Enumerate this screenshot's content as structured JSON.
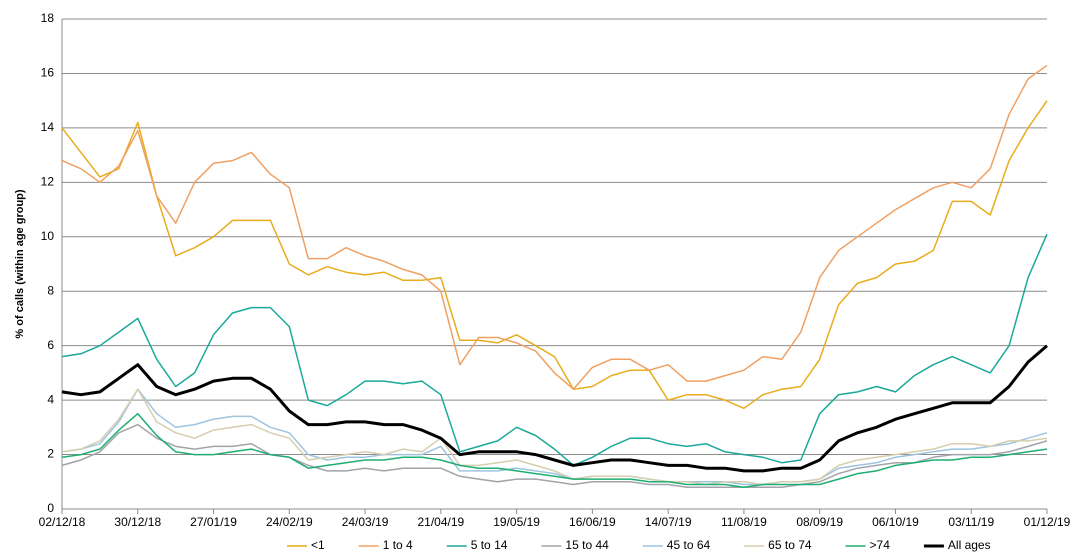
{
  "chart_data": {
    "type": "line",
    "y_label": "% of calls (within age group)",
    "x": [
      "02/12/18",
      "09/12/18",
      "16/12/18",
      "23/12/18",
      "30/12/18",
      "06/01/19",
      "13/01/19",
      "20/01/19",
      "27/01/19",
      "03/02/19",
      "10/02/19",
      "17/02/19",
      "24/02/19",
      "03/03/19",
      "10/03/19",
      "17/03/19",
      "24/03/19",
      "31/03/19",
      "07/04/19",
      "14/04/19",
      "21/04/19",
      "28/04/19",
      "05/05/19",
      "12/05/19",
      "19/05/19",
      "26/05/19",
      "02/06/19",
      "09/06/19",
      "16/06/19",
      "23/06/19",
      "30/06/19",
      "07/07/19",
      "14/07/19",
      "21/07/19",
      "28/07/19",
      "04/08/19",
      "11/08/19",
      "18/08/19",
      "25/08/19",
      "01/09/19",
      "08/09/19",
      "15/09/19",
      "22/09/19",
      "29/09/19",
      "06/10/19",
      "13/10/19",
      "20/10/19",
      "27/10/19",
      "03/11/19",
      "10/11/19",
      "17/11/19",
      "24/11/19",
      "01/12/19"
    ],
    "xlim": [
      "02/12/18",
      "01/12/19"
    ],
    "xticks": [
      "02/12/18",
      "30/12/18",
      "27/01/19",
      "24/02/19",
      "24/03/19",
      "21/04/19",
      "19/05/19",
      "16/06/19",
      "14/07/19",
      "11/08/19",
      "08/09/19",
      "06/10/19",
      "03/11/19",
      "01/12/19"
    ],
    "ylim": [
      0,
      18
    ],
    "yticks": [
      0,
      2,
      4,
      6,
      8,
      10,
      12,
      14,
      16,
      18
    ],
    "grid": true,
    "legend": "bottom",
    "series": [
      {
        "name": "<1",
        "color": "#e8ac1c",
        "width": 1.5,
        "values": [
          14,
          13.1,
          12.2,
          12.5,
          14.2,
          11.5,
          9.3,
          9.6,
          10.0,
          10.6,
          10.6,
          10.6,
          9.0,
          8.6,
          8.9,
          8.7,
          8.6,
          8.7,
          8.4,
          8.4,
          8.5,
          6.2,
          6.2,
          6.1,
          6.4,
          6.0,
          5.6,
          4.4,
          4.5,
          4.9,
          5.1,
          5.1,
          4.0,
          4.2,
          4.2,
          4.0,
          3.7,
          4.2,
          4.4,
          4.5,
          5.5,
          7.5,
          8.3,
          8.5,
          9.0,
          9.1,
          9.5,
          11.3,
          11.3,
          10.8,
          12.8,
          14.0,
          15.0
        ]
      },
      {
        "name": "1 to 4",
        "color": "#f0a062",
        "width": 1.5,
        "values": [
          12.8,
          12.5,
          12.0,
          12.6,
          13.9,
          11.5,
          10.5,
          12.0,
          12.7,
          12.8,
          13.1,
          12.3,
          11.8,
          9.2,
          9.2,
          9.6,
          9.3,
          9.1,
          8.8,
          8.6,
          8.0,
          5.3,
          6.3,
          6.3,
          6.1,
          5.8,
          5.0,
          4.4,
          5.2,
          5.5,
          5.5,
          5.1,
          5.3,
          4.7,
          4.7,
          4.9,
          5.1,
          5.6,
          5.5,
          6.5,
          8.5,
          9.5,
          10.0,
          10.5,
          11.0,
          11.4,
          11.8,
          12.0,
          11.8,
          12.5,
          14.5,
          15.8,
          16.3
        ]
      },
      {
        "name": "5 to 14",
        "color": "#1aa99a",
        "width": 1.5,
        "values": [
          5.6,
          5.7,
          6.0,
          6.5,
          7.0,
          5.5,
          4.5,
          5.0,
          6.4,
          7.2,
          7.4,
          7.4,
          6.7,
          4.0,
          3.8,
          4.2,
          4.7,
          4.7,
          4.6,
          4.7,
          4.2,
          2.1,
          2.3,
          2.5,
          3.0,
          2.7,
          2.2,
          1.6,
          1.9,
          2.3,
          2.6,
          2.6,
          2.4,
          2.3,
          2.4,
          2.1,
          2.0,
          1.9,
          1.7,
          1.8,
          3.5,
          4.2,
          4.3,
          4.5,
          4.3,
          4.9,
          5.3,
          5.6,
          5.3,
          5.0,
          6.0,
          8.5,
          10.1
        ]
      },
      {
        "name": "15 to 44",
        "color": "#a3a3ab",
        "width": 1.5,
        "values": [
          1.6,
          1.8,
          2.1,
          2.8,
          3.1,
          2.6,
          2.3,
          2.2,
          2.3,
          2.3,
          2.4,
          2.0,
          1.9,
          1.6,
          1.4,
          1.4,
          1.5,
          1.4,
          1.5,
          1.5,
          1.5,
          1.2,
          1.1,
          1.0,
          1.1,
          1.1,
          1.0,
          0.9,
          1.0,
          1.0,
          1.0,
          0.9,
          0.9,
          0.8,
          0.8,
          0.8,
          0.8,
          0.8,
          0.8,
          0.9,
          1.0,
          1.3,
          1.5,
          1.6,
          1.7,
          1.7,
          1.9,
          2.0,
          2.0,
          2.0,
          2.1,
          2.3,
          2.5
        ]
      },
      {
        "name": "45 to 64",
        "color": "#9ec4e0",
        "width": 1.5,
        "values": [
          2.1,
          2.2,
          2.4,
          3.2,
          4.4,
          3.5,
          3.0,
          3.1,
          3.3,
          3.4,
          3.4,
          3.0,
          2.8,
          2.0,
          1.8,
          1.9,
          1.9,
          2.0,
          2.0,
          2.0,
          2.3,
          1.4,
          1.4,
          1.4,
          1.5,
          1.4,
          1.3,
          1.1,
          1.2,
          1.2,
          1.2,
          1.1,
          1.0,
          1.0,
          1.0,
          1.0,
          0.9,
          0.9,
          1.0,
          1.0,
          1.1,
          1.5,
          1.6,
          1.7,
          1.9,
          2.0,
          2.1,
          2.2,
          2.2,
          2.3,
          2.4,
          2.6,
          2.8
        ]
      },
      {
        "name": "65 to 74",
        "color": "#d6ceae",
        "width": 1.5,
        "values": [
          2.1,
          2.2,
          2.5,
          3.3,
          4.4,
          3.2,
          2.8,
          2.6,
          2.9,
          3.0,
          3.1,
          2.8,
          2.6,
          1.8,
          1.9,
          2.0,
          2.1,
          2.0,
          2.2,
          2.1,
          2.6,
          1.6,
          1.6,
          1.7,
          1.8,
          1.6,
          1.4,
          1.1,
          1.2,
          1.2,
          1.2,
          1.1,
          1.0,
          1.0,
          0.9,
          1.0,
          1.0,
          0.9,
          1.0,
          1.0,
          1.1,
          1.6,
          1.8,
          1.9,
          2.0,
          2.1,
          2.2,
          2.4,
          2.4,
          2.3,
          2.5,
          2.5,
          2.6
        ]
      },
      {
        "name": ">74",
        "color": "#1fae72",
        "width": 1.5,
        "values": [
          1.9,
          2.0,
          2.2,
          2.9,
          3.5,
          2.7,
          2.1,
          2.0,
          2.0,
          2.1,
          2.2,
          2.0,
          1.9,
          1.5,
          1.6,
          1.7,
          1.8,
          1.8,
          1.9,
          1.9,
          1.8,
          1.6,
          1.5,
          1.5,
          1.4,
          1.3,
          1.2,
          1.1,
          1.1,
          1.1,
          1.1,
          1.0,
          1.0,
          0.9,
          0.9,
          0.9,
          0.8,
          0.9,
          0.9,
          0.9,
          0.9,
          1.1,
          1.3,
          1.4,
          1.6,
          1.7,
          1.8,
          1.8,
          1.9,
          1.9,
          2.0,
          2.1,
          2.2
        ]
      },
      {
        "name": "All ages",
        "color": "#000000",
        "width": 3,
        "values": [
          4.3,
          4.2,
          4.3,
          4.8,
          5.3,
          4.5,
          4.2,
          4.4,
          4.7,
          4.8,
          4.8,
          4.4,
          3.6,
          3.1,
          3.1,
          3.2,
          3.2,
          3.1,
          3.1,
          2.9,
          2.6,
          2.0,
          2.1,
          2.1,
          2.1,
          2.0,
          1.8,
          1.6,
          1.7,
          1.8,
          1.8,
          1.7,
          1.6,
          1.6,
          1.5,
          1.5,
          1.4,
          1.4,
          1.5,
          1.5,
          1.8,
          2.5,
          2.8,
          3.0,
          3.3,
          3.5,
          3.7,
          3.9,
          3.9,
          3.9,
          4.5,
          5.4,
          6.0
        ]
      }
    ]
  }
}
